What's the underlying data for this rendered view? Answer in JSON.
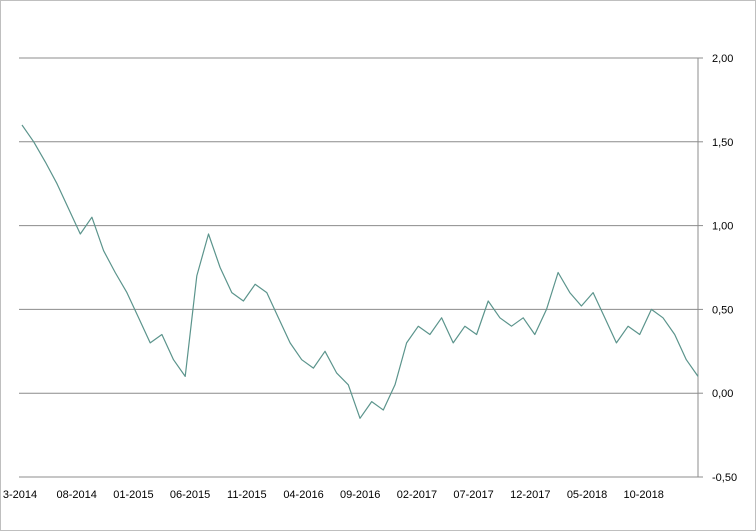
{
  "chart_data": {
    "type": "line",
    "title": "",
    "xlabel": "",
    "ylabel": "",
    "ylim": [
      -0.5,
      2.0
    ],
    "y_ticks": [
      -0.5,
      0.0,
      0.5,
      1.0,
      1.5,
      2.0
    ],
    "y_tick_labels": [
      "-0,50",
      "0,00",
      "0,50",
      "1,00",
      "1,50",
      "2,00"
    ],
    "y_axis_side": "right",
    "x_tick_labels": [
      "3-2014",
      "08-2014",
      "01-2015",
      "06-2015",
      "11-2015",
      "04-2016",
      "09-2016",
      "02-2017",
      "07-2017",
      "12-2017",
      "05-2018",
      "10-2018"
    ],
    "grid": "horizontal",
    "legend": "none",
    "line_color": "#5b948c",
    "series": [
      {
        "x": [
          "2014-03",
          "2014-04",
          "2014-05",
          "2014-06",
          "2014-07",
          "2014-08",
          "2014-09",
          "2014-10",
          "2014-11",
          "2014-12",
          "2015-01",
          "2015-02",
          "2015-03",
          "2015-04",
          "2015-05",
          "2015-06",
          "2015-07",
          "2015-08",
          "2015-09",
          "2015-10",
          "2015-11",
          "2015-12",
          "2016-01",
          "2016-02",
          "2016-03",
          "2016-04",
          "2016-05",
          "2016-06",
          "2016-07",
          "2016-08",
          "2016-09",
          "2016-10",
          "2016-11",
          "2016-12",
          "2017-01",
          "2017-02",
          "2017-03",
          "2017-04",
          "2017-05",
          "2017-06",
          "2017-07",
          "2017-08",
          "2017-09",
          "2017-10",
          "2017-11",
          "2017-12",
          "2018-01",
          "2018-02",
          "2018-03",
          "2018-04",
          "2018-05",
          "2018-06",
          "2018-07",
          "2018-08",
          "2018-09",
          "2018-10",
          "2018-11",
          "2018-12",
          "2019-01"
        ],
        "values": [
          1.6,
          1.5,
          1.38,
          1.25,
          1.1,
          0.95,
          1.05,
          0.85,
          0.72,
          0.6,
          0.45,
          0.3,
          0.35,
          0.2,
          0.1,
          0.7,
          0.95,
          0.75,
          0.6,
          0.55,
          0.65,
          0.6,
          0.45,
          0.3,
          0.2,
          0.15,
          0.25,
          0.12,
          0.05,
          -0.15,
          -0.05,
          -0.1,
          0.05,
          0.3,
          0.4,
          0.35,
          0.45,
          0.3,
          0.4,
          0.35,
          0.55,
          0.45,
          0.4,
          0.45,
          0.35,
          0.5,
          0.72,
          0.6,
          0.52,
          0.6,
          0.45,
          0.3,
          0.4,
          0.35,
          0.5,
          0.45,
          0.35,
          0.2,
          0.1
        ]
      }
    ]
  }
}
